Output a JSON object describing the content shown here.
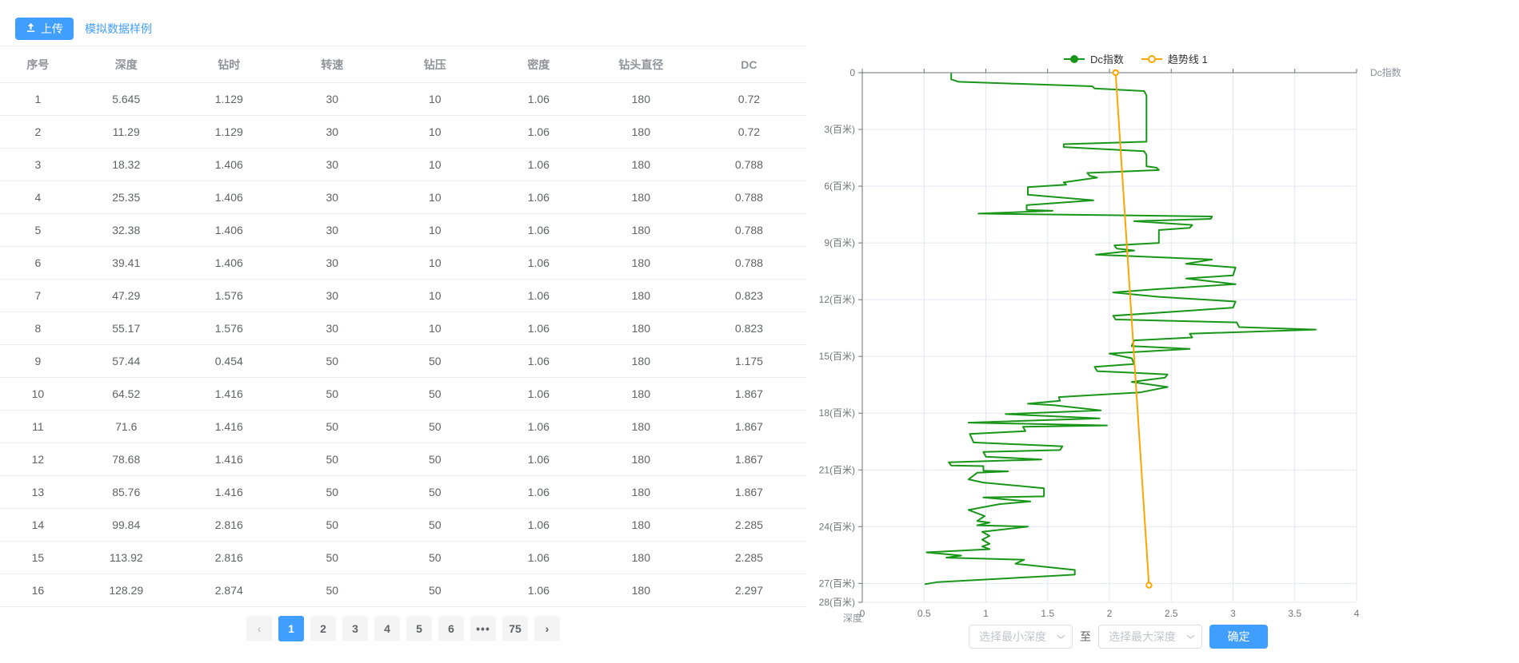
{
  "toolbar": {
    "upload_label": "上传",
    "sample_label": "模拟数据样例"
  },
  "table": {
    "columns": [
      "序号",
      "深度",
      "钻时",
      "转速",
      "钻压",
      "密度",
      "钻头直径",
      "DC"
    ],
    "rows": [
      [
        "1",
        "5.645",
        "1.129",
        "30",
        "10",
        "1.06",
        "180",
        "0.72"
      ],
      [
        "2",
        "11.29",
        "1.129",
        "30",
        "10",
        "1.06",
        "180",
        "0.72"
      ],
      [
        "3",
        "18.32",
        "1.406",
        "30",
        "10",
        "1.06",
        "180",
        "0.788"
      ],
      [
        "4",
        "25.35",
        "1.406",
        "30",
        "10",
        "1.06",
        "180",
        "0.788"
      ],
      [
        "5",
        "32.38",
        "1.406",
        "30",
        "10",
        "1.06",
        "180",
        "0.788"
      ],
      [
        "6",
        "39.41",
        "1.406",
        "30",
        "10",
        "1.06",
        "180",
        "0.788"
      ],
      [
        "7",
        "47.29",
        "1.576",
        "30",
        "10",
        "1.06",
        "180",
        "0.823"
      ],
      [
        "8",
        "55.17",
        "1.576",
        "30",
        "10",
        "1.06",
        "180",
        "0.823"
      ],
      [
        "9",
        "57.44",
        "0.454",
        "50",
        "50",
        "1.06",
        "180",
        "1.175"
      ],
      [
        "10",
        "64.52",
        "1.416",
        "50",
        "50",
        "1.06",
        "180",
        "1.867"
      ],
      [
        "11",
        "71.6",
        "1.416",
        "50",
        "50",
        "1.06",
        "180",
        "1.867"
      ],
      [
        "12",
        "78.68",
        "1.416",
        "50",
        "50",
        "1.06",
        "180",
        "1.867"
      ],
      [
        "13",
        "85.76",
        "1.416",
        "50",
        "50",
        "1.06",
        "180",
        "1.867"
      ],
      [
        "14",
        "99.84",
        "2.816",
        "50",
        "50",
        "1.06",
        "180",
        "2.285"
      ],
      [
        "15",
        "113.92",
        "2.816",
        "50",
        "50",
        "1.06",
        "180",
        "2.285"
      ],
      [
        "16",
        "128.29",
        "2.874",
        "50",
        "50",
        "1.06",
        "180",
        "2.297"
      ]
    ]
  },
  "pagination": {
    "prev": "‹",
    "next": "›",
    "items": [
      "1",
      "2",
      "3",
      "4",
      "5",
      "6",
      "•••",
      "75"
    ],
    "active": "1"
  },
  "legend": [
    {
      "label": "Dc指数",
      "color": "#189618",
      "marker": "filled"
    },
    {
      "label": "趋势线 1",
      "color": "#ffa500",
      "marker": "open"
    }
  ],
  "chart_data": {
    "type": "line",
    "title": "",
    "xlabel": "Dc指数",
    "ylabel": "深度",
    "xlim": [
      0,
      4
    ],
    "ylim": [
      0,
      28
    ],
    "y_inverted": true,
    "grid": true,
    "legend_position": "top",
    "x_tick_values": [
      0,
      0.5,
      1,
      1.5,
      2,
      2.5,
      3,
      3.5,
      4
    ],
    "x_tick_labels": [
      "0",
      "0.5",
      "1",
      "1.5",
      "2",
      "2.5",
      "3",
      "3.5",
      "4"
    ],
    "y_tick_values": [
      0,
      3,
      6,
      9,
      12,
      15,
      18,
      21,
      24,
      27,
      28
    ],
    "y_tick_labels": [
      "0",
      "3(百米)",
      "6(百米)",
      "9(百米)",
      "12(百米)",
      "15(百米)",
      "18(百米)",
      "21(百米)",
      "24(百米)",
      "27(百米)",
      "28(百米)"
    ],
    "series": [
      {
        "name": "Dc指数",
        "color": "#189618",
        "marker": "none",
        "points": [
          [
            0.72,
            0.06
          ],
          [
            0.72,
            0.35
          ],
          [
            0.78,
            0.48
          ],
          [
            1.86,
            0.72
          ],
          [
            1.88,
            0.83
          ],
          [
            2.28,
            0.97
          ],
          [
            2.3,
            1.2
          ],
          [
            2.3,
            3.65
          ],
          [
            1.63,
            3.78
          ],
          [
            1.63,
            3.93
          ],
          [
            2.28,
            4.15
          ],
          [
            2.3,
            4.35
          ],
          [
            2.3,
            4.95
          ],
          [
            2.38,
            5.02
          ],
          [
            2.4,
            5.15
          ],
          [
            1.82,
            5.3
          ],
          [
            1.84,
            5.45
          ],
          [
            1.9,
            5.55
          ],
          [
            1.63,
            5.8
          ],
          [
            1.65,
            5.92
          ],
          [
            1.34,
            6.05
          ],
          [
            1.34,
            6.45
          ],
          [
            1.87,
            6.75
          ],
          [
            1.33,
            7.0
          ],
          [
            1.33,
            7.25
          ],
          [
            1.54,
            7.3
          ],
          [
            0.94,
            7.45
          ],
          [
            2.83,
            7.6
          ],
          [
            2.82,
            7.73
          ],
          [
            2.2,
            7.85
          ],
          [
            2.67,
            8.05
          ],
          [
            2.65,
            8.2
          ],
          [
            2.4,
            8.32
          ],
          [
            2.4,
            9.0
          ],
          [
            2.04,
            9.13
          ],
          [
            2.06,
            9.3
          ],
          [
            2.2,
            9.4
          ],
          [
            1.89,
            9.62
          ],
          [
            2.83,
            9.88
          ],
          [
            2.62,
            10.1
          ],
          [
            3.02,
            10.3
          ],
          [
            3.0,
            10.72
          ],
          [
            2.62,
            10.88
          ],
          [
            3.02,
            11.18
          ],
          [
            2.37,
            11.45
          ],
          [
            2.03,
            11.62
          ],
          [
            2.4,
            11.85
          ],
          [
            3.02,
            12.1
          ],
          [
            3.0,
            12.42
          ],
          [
            2.65,
            12.58
          ],
          [
            2.03,
            12.85
          ],
          [
            2.05,
            13.05
          ],
          [
            3.03,
            13.2
          ],
          [
            3.05,
            13.45
          ],
          [
            3.67,
            13.58
          ],
          [
            2.65,
            13.8
          ],
          [
            2.67,
            14.0
          ],
          [
            2.2,
            14.15
          ],
          [
            2.18,
            14.45
          ],
          [
            2.65,
            14.6
          ],
          [
            2.0,
            14.85
          ],
          [
            2.18,
            15.1
          ],
          [
            2.2,
            15.4
          ],
          [
            1.88,
            15.55
          ],
          [
            1.9,
            15.78
          ],
          [
            2.47,
            15.95
          ],
          [
            2.45,
            16.12
          ],
          [
            2.18,
            16.35
          ],
          [
            2.47,
            16.62
          ],
          [
            2.25,
            16.9
          ],
          [
            1.59,
            17.15
          ],
          [
            1.6,
            17.35
          ],
          [
            1.34,
            17.5
          ],
          [
            1.55,
            17.58
          ],
          [
            1.93,
            17.85
          ],
          [
            1.16,
            18.05
          ],
          [
            1.92,
            18.28
          ],
          [
            0.86,
            18.5
          ],
          [
            1.98,
            18.65
          ],
          [
            1.3,
            18.72
          ],
          [
            1.32,
            18.95
          ],
          [
            0.87,
            19.1
          ],
          [
            0.9,
            19.55
          ],
          [
            1.62,
            19.75
          ],
          [
            1.6,
            19.95
          ],
          [
            0.98,
            20.05
          ],
          [
            1.0,
            20.3
          ],
          [
            1.45,
            20.45
          ],
          [
            0.7,
            20.6
          ],
          [
            0.72,
            20.77
          ],
          [
            0.98,
            20.8
          ],
          [
            0.98,
            21.05
          ],
          [
            1.18,
            21.08
          ],
          [
            0.93,
            21.15
          ],
          [
            0.86,
            21.5
          ],
          [
            0.98,
            21.67
          ],
          [
            1.47,
            21.97
          ],
          [
            1.47,
            22.4
          ],
          [
            0.98,
            22.46
          ],
          [
            1.36,
            22.67
          ],
          [
            1.11,
            22.81
          ],
          [
            0.86,
            23.12
          ],
          [
            0.99,
            23.44
          ],
          [
            0.93,
            23.7
          ],
          [
            1.03,
            23.79
          ],
          [
            0.93,
            23.93
          ],
          [
            1.34,
            24.0
          ],
          [
            0.97,
            24.27
          ],
          [
            1.03,
            24.49
          ],
          [
            0.97,
            24.69
          ],
          [
            1.03,
            24.91
          ],
          [
            0.97,
            25.05
          ],
          [
            1.03,
            25.19
          ],
          [
            0.52,
            25.36
          ],
          [
            0.8,
            25.53
          ],
          [
            0.68,
            25.64
          ],
          [
            1.31,
            25.75
          ],
          [
            1.24,
            25.96
          ],
          [
            1.72,
            26.29
          ],
          [
            1.72,
            26.54
          ],
          [
            1.58,
            26.59
          ],
          [
            0.61,
            26.93
          ],
          [
            0.51,
            27.04
          ]
        ]
      },
      {
        "name": "趋势线 1",
        "color": "#ffa500",
        "marker": "open-circle",
        "points": [
          [
            2.05,
            0
          ],
          [
            2.32,
            27.1
          ]
        ]
      }
    ]
  },
  "range_controls": {
    "min_placeholder": "选择最小深度",
    "to_label": "至",
    "max_placeholder": "选择最大深度",
    "confirm_label": "确定"
  }
}
